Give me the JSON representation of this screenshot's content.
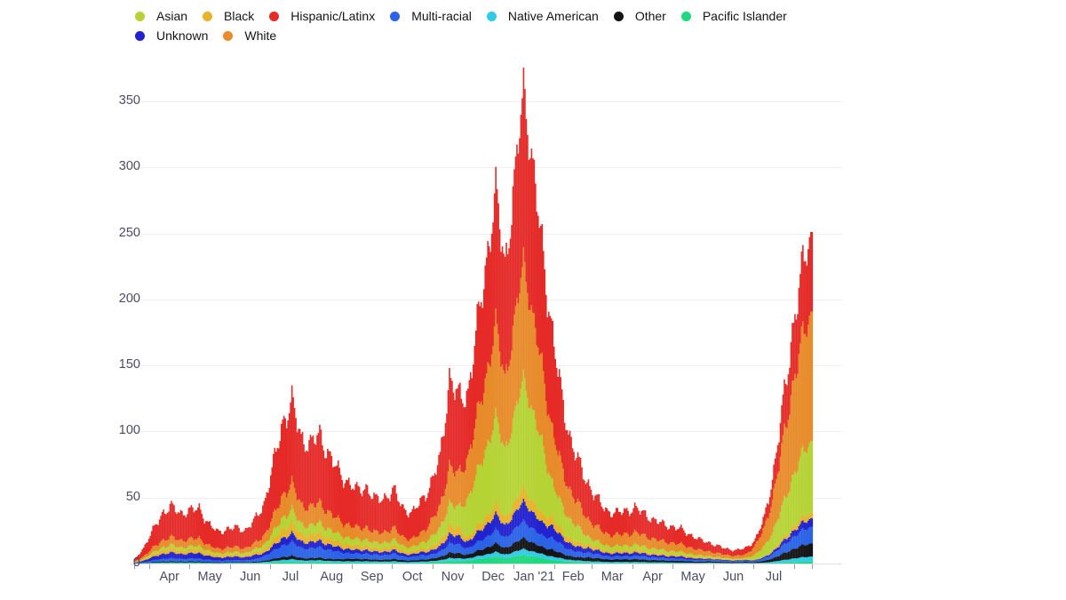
{
  "page": {
    "background": "#ffffff"
  },
  "style": {
    "grid_color": "#ededf2",
    "baseline_color": "#dcdce2",
    "tick_color": "#9b9bab",
    "axis_label_color": "#4c4c62",
    "legend_text_color": "#141414"
  },
  "legend": {
    "rows": [
      [
        "Asian",
        "Black",
        "Hispanic/Latinx",
        "Multi-racial",
        "Native American",
        "Other",
        "Pacific Islander"
      ],
      [
        "Unknown",
        "White"
      ]
    ]
  },
  "chart_data": {
    "type": "bar",
    "stacked": true,
    "sampling": "weekly_samples_interpolated_to_daily_bars",
    "x_axis": {
      "start": "2020-03-20",
      "end": "2021-08-14",
      "total_days": 513,
      "first_tick_day": 12,
      "month_lengths": [
        30,
        31,
        30,
        31,
        31,
        30,
        31,
        30,
        31,
        31,
        28,
        31,
        30,
        31,
        30,
        31
      ],
      "tick_labels": [
        "Apr",
        "May",
        "Jun",
        "Jul",
        "Aug",
        "Sep",
        "Oct",
        "Nov",
        "Dec",
        "Jan '21",
        "Feb",
        "Mar",
        "Apr",
        "May",
        "Jun",
        "Jul"
      ]
    },
    "y_axis": {
      "ticks": [
        0,
        50,
        100,
        150,
        200,
        250,
        300,
        350
      ],
      "max": 376
    },
    "legend_position": "top",
    "grid": "horizontal",
    "stack_order_note": "series listed bottom-to-top of stack",
    "series": [
      {
        "name": "pacific_islander",
        "label": "Pacific Islander",
        "color": "#1fd87f",
        "values": [
          0,
          0.1,
          0.3,
          0.4,
          0.4,
          0.4,
          0.4,
          0.4,
          0.3,
          0.2,
          0.3,
          0.3,
          0.3,
          0.3,
          0.5,
          0.8,
          1.1,
          1.3,
          1,
          0.9,
          1,
          0.8,
          0.7,
          0.6,
          0.6,
          0.6,
          0.5,
          0.5,
          0.6,
          0.4,
          0.4,
          0.5,
          0.9,
          1.2,
          2.1,
          1.9,
          2.3,
          3.2,
          4.1,
          5.2,
          4.1,
          5.2,
          6.7,
          5.4,
          4.3,
          2.7,
          2,
          1.4,
          1.1,
          0.6,
          0.5,
          0.4,
          0.4,
          0.4,
          0.4,
          0.4,
          0.3,
          0.3,
          0.3,
          0.3,
          0.2,
          0.2,
          0.2,
          0.1,
          0.1,
          0.1,
          0.1,
          0.1,
          0.2,
          0.4,
          0.7,
          1.1,
          1.3,
          1.5
        ]
      },
      {
        "name": "native_american",
        "label": "Native American",
        "color": "#30cbe6",
        "values": [
          0,
          0.1,
          0.3,
          0.4,
          0.4,
          0.4,
          0.4,
          0.4,
          0.3,
          0.2,
          0.3,
          0.3,
          0.3,
          0.3,
          0.7,
          1.1,
          1.7,
          1.9,
          1.4,
          1.4,
          1.5,
          1.2,
          1.1,
          1.2,
          1.1,
          1.2,
          1,
          1,
          1.1,
          0.8,
          0.8,
          1,
          0.9,
          1.2,
          2.1,
          1.9,
          1.6,
          2.2,
          2.8,
          3.5,
          2.7,
          3.5,
          4.5,
          3.6,
          2.9,
          2.7,
          2,
          1.4,
          1.1,
          1.2,
          1,
          0.8,
          0.8,
          0.8,
          0.8,
          0.7,
          0.6,
          0.6,
          0.5,
          0.4,
          0.4,
          0.3,
          0.5,
          0.4,
          0.3,
          0.3,
          0.4,
          0.3,
          0.5,
          1.1,
          1.8,
          2.6,
          3.3,
          3.8
        ]
      },
      {
        "name": "other",
        "label": "Other",
        "color": "#151515",
        "values": [
          0.1,
          0.2,
          0.5,
          0.8,
          0.9,
          0.8,
          0.8,
          0.8,
          0.6,
          0.5,
          0.5,
          0.5,
          0.5,
          0.7,
          0.9,
          1.5,
          2.2,
          2.6,
          1.9,
          1.8,
          2,
          1.6,
          1.4,
          1.9,
          1.7,
          1.7,
          1.4,
          1.5,
          1.7,
          1.3,
          1.1,
          1.4,
          1.8,
          2.4,
          4.2,
          3.8,
          2.9,
          4,
          5.1,
          6.4,
          5,
          6.4,
          8.2,
          6.6,
          5.3,
          5.4,
          3.9,
          2.9,
          2.3,
          3,
          2.4,
          2,
          1.9,
          2,
          2.1,
          1.9,
          1.7,
          1.5,
          1.4,
          1.3,
          1.1,
          0.9,
          1.1,
          0.9,
          0.8,
          0.7,
          0.8,
          0.7,
          1.4,
          2.8,
          4.8,
          7,
          8.8,
          10
        ]
      },
      {
        "name": "multi_racial",
        "label": "Multi-racial",
        "color": "#2a63e6",
        "values": [
          0.2,
          0.6,
          1.3,
          1.9,
          2.2,
          1.9,
          2,
          2.1,
          1.5,
          1.2,
          1.3,
          1.4,
          1.3,
          1.7,
          3.6,
          6,
          8.8,
          10.2,
          7.6,
          7.2,
          7.8,
          6.6,
          5.6,
          4.3,
          3.9,
          4.1,
          3.4,
          3.5,
          3.9,
          2.9,
          2.7,
          3.4,
          3,
          4,
          7,
          6.3,
          4.6,
          6.3,
          8.1,
          10.2,
          7.9,
          10.2,
          13,
          10.5,
          8.4,
          9,
          6.5,
          4.8,
          3.8,
          3.6,
          2.9,
          2.4,
          2.3,
          2.4,
          2.5,
          2.3,
          2,
          1.8,
          1.7,
          1.6,
          1.3,
          1.1,
          1.1,
          0.9,
          0.8,
          0.7,
          0.8,
          0.9,
          1.8,
          3.5,
          6,
          8.8,
          11,
          12.5
        ]
      },
      {
        "name": "unknown",
        "label": "Unknown",
        "color": "#2222d0",
        "values": [
          0.3,
          1.2,
          2.5,
          3.8,
          4.3,
          3.8,
          4,
          4.2,
          3,
          2.4,
          2.6,
          2.7,
          2.5,
          3.3,
          2.3,
          3.8,
          5.5,
          6.4,
          4.8,
          4.5,
          4.9,
          4.1,
          3.5,
          3.1,
          2.8,
          2.9,
          2.4,
          2.5,
          2.8,
          2.1,
          1.9,
          2.4,
          3,
          4,
          7,
          6.3,
          5.2,
          7.2,
          9.2,
          11.6,
          9,
          11.6,
          14.9,
          12,
          9.6,
          9,
          6.5,
          4.8,
          3.8,
          3.6,
          2.9,
          2.4,
          2.3,
          2.4,
          2.5,
          2.3,
          2,
          1.8,
          1.7,
          1.6,
          1.3,
          1.1,
          0.8,
          0.7,
          0.6,
          0.5,
          0.6,
          0.5,
          0.9,
          1.8,
          3,
          4.4,
          5.5,
          6.3
        ]
      },
      {
        "name": "black",
        "label": "Black",
        "color": "#e7b32a",
        "values": [
          0.2,
          0.8,
          1.8,
          2.7,
          3,
          2.7,
          2.8,
          2.9,
          2.1,
          1.7,
          1.8,
          1.9,
          1.8,
          2.3,
          2.7,
          4.5,
          6.6,
          7.7,
          5.7,
          5.4,
          5.9,
          4.9,
          4.2,
          3.7,
          3.3,
          3.5,
          2.9,
          3,
          3.3,
          2.5,
          2.3,
          2.9,
          3,
          4,
          7,
          6.3,
          3.6,
          5,
          6.4,
          8.1,
          6.3,
          8.1,
          10.4,
          8.4,
          6.7,
          7.2,
          5.2,
          3.8,
          3,
          3,
          2.4,
          2,
          1.9,
          2,
          2.1,
          1.9,
          1.7,
          1.5,
          1.4,
          1.3,
          1.1,
          0.9,
          0.8,
          0.7,
          0.6,
          0.5,
          0.6,
          0.3,
          0.6,
          1.3,
          2.2,
          3.2,
          4,
          4.5
        ]
      },
      {
        "name": "asian",
        "label": "Asian",
        "color": "#b5d334",
        "values": [
          0.2,
          0.7,
          1.5,
          2.3,
          2.6,
          2.3,
          2.4,
          2.5,
          1.8,
          1.4,
          1.6,
          1.6,
          1.5,
          2,
          3.6,
          6,
          8.8,
          10.2,
          7.6,
          7.2,
          7.8,
          6.6,
          5.6,
          5,
          4.6,
          4.4,
          3.8,
          4,
          4.4,
          3.4,
          3,
          3.8,
          7.2,
          9.6,
          16.8,
          15,
          29,
          40,
          52,
          65,
          51,
          65,
          84,
          67,
          54,
          27,
          19.5,
          14.3,
          11.3,
          5.4,
          4.3,
          3.6,
          3.4,
          3.6,
          3.8,
          3.4,
          3,
          2.7,
          2.5,
          2.3,
          2,
          1.6,
          1.3,
          1,
          0.9,
          0.8,
          1,
          3.9,
          7.5,
          15,
          25.8,
          37.6,
          47.3,
          53.8
        ]
      },
      {
        "name": "white",
        "label": "White",
        "color": "#e78b2b",
        "values": [
          0.4,
          1.7,
          3.5,
          5.3,
          6,
          5.3,
          5.6,
          5.9,
          4.2,
          3.4,
          3.6,
          3.8,
          3.5,
          4.6,
          7,
          11.6,
          17.1,
          19.8,
          14.7,
          14,
          15.2,
          12.7,
          10.9,
          9.9,
          8.8,
          9.3,
          7.7,
          8,
          8.8,
          6.7,
          6.1,
          7.7,
          12,
          16,
          28,
          25,
          31,
          43,
          55,
          70,
          54,
          70,
          89,
          72,
          58,
          41,
          30,
          22,
          17.3,
          13.2,
          10.6,
          8.8,
          8.4,
          8.8,
          9.2,
          8.4,
          7.3,
          6.6,
          6.2,
          5.7,
          4.8,
          4,
          3.5,
          2.9,
          2.4,
          2.2,
          2.6,
          7,
          13.7,
          27.3,
          46.8,
          68.3,
          85.8,
          97.5
        ]
      },
      {
        "name": "hispanic_latinx",
        "label": "Hispanic/Latinx",
        "color": "#e52b28",
        "values": [
          1.6,
          6.5,
          13.5,
          20.5,
          23.2,
          20.5,
          21.6,
          22.7,
          16.2,
          13,
          14,
          14.6,
          13.5,
          17.8,
          23.9,
          39.8,
          55,
          62,
          50.4,
          47.7,
          51.9,
          43.5,
          37.1,
          32.2,
          28.6,
          30.2,
          25,
          26,
          28.6,
          21.8,
          19.8,
          25,
          28.2,
          37.6,
          65.8,
          58.8,
          49,
          68,
          87,
          100,
          86,
          105,
          131,
          114,
          91,
          76,
          55,
          40,
          31.5,
          26.4,
          21.1,
          17.6,
          16.7,
          17.6,
          18.5,
          16.7,
          14.5,
          13.2,
          12.3,
          11.4,
          9.7,
          7.9,
          6.7,
          5.5,
          4.6,
          4.2,
          5,
          4.2,
          8.4,
          16.8,
          28.8,
          42,
          52.8,
          60
        ]
      }
    ]
  }
}
